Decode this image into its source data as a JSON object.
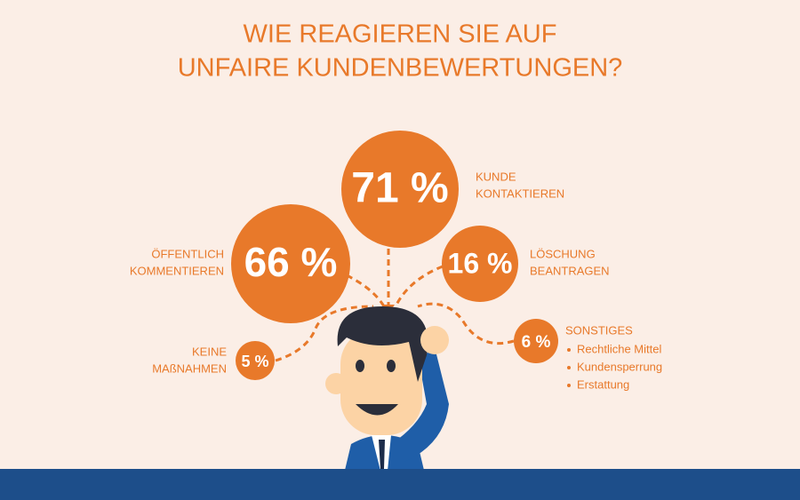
{
  "title_lines": [
    "WIE REAGIEREN SIE AUF",
    "UNFAIRE KUNDENBEWERTUNGEN?"
  ],
  "items": [
    {
      "value_label": "71 %",
      "label_lines": [
        "KUNDE",
        "KONTAKTIEREN"
      ]
    },
    {
      "value_label": "66 %",
      "label_lines": [
        "ÖFFENTLICH",
        "KOMMENTIEREN"
      ]
    },
    {
      "value_label": "16 %",
      "label_lines": [
        "LÖSCHUNG",
        "BEANTRAGEN"
      ]
    },
    {
      "value_label": "6 %",
      "label_lines": [
        "SONSTIGES"
      ],
      "bullets": [
        "Rechtliche Mittel",
        "Kundensperrung",
        "Erstattung"
      ]
    },
    {
      "value_label": "5 %",
      "label_lines": [
        "KEINE",
        "MAßNAHMEN"
      ]
    }
  ]
}
